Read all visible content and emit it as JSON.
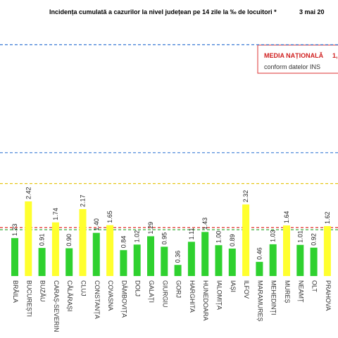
{
  "chart_data": {
    "type": "bar",
    "title": "Incidența cumulată a cazurilor la nivel județean pe 14 zile la ‰ de locuitori *",
    "date": "3 mai 20",
    "legend_title": "MEDIA NAȚIONALĂ",
    "legend_value": "1,",
    "legend_note": "conform datelor INS",
    "categories": [
      "BRĂILA",
      "BUCUREȘTI",
      "BUZĂU",
      "CARAȘ-SEVERIN",
      "CĂLĂRAȘI",
      "CLUJ",
      "CONSTANȚA",
      "COVASNA",
      "DÂMBOVIȚA",
      "DOLJ",
      "GALAȚI",
      "GIURGIU",
      "GORJ",
      "HARGHITA",
      "HUNEDOARA",
      "IALOMIȚA",
      "IAȘI",
      "ILFOV",
      "MARAMUREȘ",
      "MEHEDINȚI",
      "MUREȘ",
      "NEAMȚ",
      "OLT",
      "PRAHOVA"
    ],
    "values": [
      1.23,
      2.42,
      0.91,
      1.74,
      0.9,
      2.17,
      1.4,
      1.65,
      0.84,
      1.02,
      1.29,
      0.95,
      0.36,
      1.11,
      1.43,
      1.0,
      0.89,
      2.32,
      0.46,
      1.03,
      1.64,
      1.01,
      0.92,
      1.62
    ],
    "value_labels": [
      "1.23",
      "2.42",
      "0.91",
      "1.74",
      "0.90",
      "2.17",
      "1.40",
      "1.65",
      "0.84",
      "1.02",
      "1.29",
      "0.95",
      "0.36",
      "1.11",
      "1.43",
      "1.00",
      "0.89",
      "2.32",
      "0.46",
      "1.03",
      "1.64",
      "1.01",
      "0.92",
      "1.62"
    ],
    "colors": [
      "#2fd12f",
      "#ffff2e",
      "#2fd12f",
      "#ffff2e",
      "#2fd12f",
      "#ffff2e",
      "#2fd12f",
      "#ffff2e",
      "#2fd12f",
      "#2fd12f",
      "#2fd12f",
      "#2fd12f",
      "#2fd12f",
      "#2fd12f",
      "#2fd12f",
      "#2fd12f",
      "#2fd12f",
      "#ffff2e",
      "#2fd12f",
      "#2fd12f",
      "#ffff2e",
      "#2fd12f",
      "#2fd12f",
      "#ffff2e"
    ],
    "reference_lines": [
      {
        "value": 7.5,
        "color": "#3a7bd5"
      },
      {
        "value": 4,
        "color": "#3a7bd5"
      },
      {
        "value": 3,
        "color": "#e6c619"
      },
      {
        "value": 1.57,
        "color": "#e0302a"
      },
      {
        "value": 1.5,
        "color": "#2fa82f"
      }
    ],
    "ylim": [
      0,
      9
    ]
  }
}
